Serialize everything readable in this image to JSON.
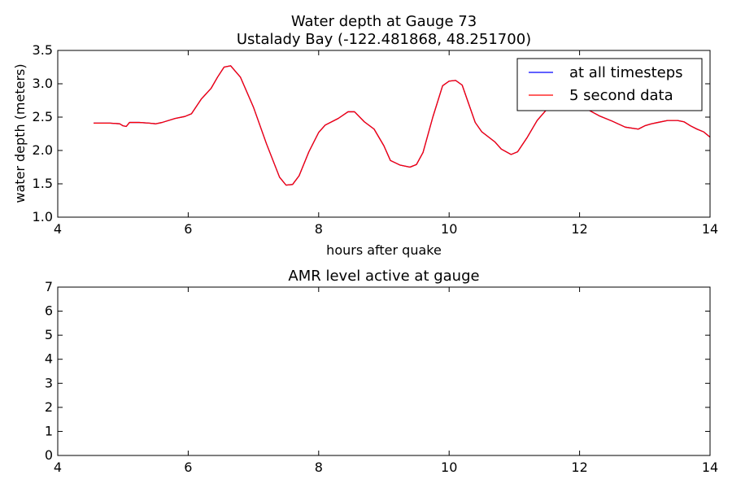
{
  "chart_data": [
    {
      "type": "line",
      "title_line1": "Water depth at Gauge 73",
      "title_line2": "Ustalady Bay  (-122.481868, 48.251700)",
      "xlabel": "hours after quake",
      "ylabel": "water depth (meters)",
      "xlim": [
        4,
        14
      ],
      "ylim": [
        1.0,
        3.5
      ],
      "xticks": [
        "4",
        "6",
        "8",
        "10",
        "12",
        "14"
      ],
      "yticks": [
        "1.0",
        "1.5",
        "2.0",
        "2.5",
        "3.0",
        "3.5"
      ],
      "grid": false,
      "legend_position": "top-right",
      "series": [
        {
          "name": "at all timesteps",
          "color": "#0000ff",
          "x": [
            4.55,
            4.8,
            4.95,
            5.0,
            5.05,
            5.1,
            5.15,
            5.25,
            5.4,
            5.5,
            5.6,
            5.8,
            5.95,
            6.05,
            6.2,
            6.35,
            6.45,
            6.55,
            6.65,
            6.8,
            7.0,
            7.2,
            7.4,
            7.5,
            7.6,
            7.7,
            7.85,
            8.0,
            8.1,
            8.3,
            8.45,
            8.55,
            8.7,
            8.85,
            9.0,
            9.1,
            9.25,
            9.4,
            9.5,
            9.6,
            9.75,
            9.9,
            10.0,
            10.1,
            10.2,
            10.3,
            10.4,
            10.5,
            10.7,
            10.8,
            10.95,
            11.05,
            11.2,
            11.35,
            11.5,
            11.65,
            11.8,
            12.0,
            12.15,
            12.3,
            12.5,
            12.7,
            12.9,
            13.0,
            13.1,
            13.2,
            13.35,
            13.5,
            13.6,
            13.7,
            13.8,
            13.9,
            14.0
          ],
          "y": [
            2.41,
            2.41,
            2.4,
            2.37,
            2.36,
            2.42,
            2.42,
            2.42,
            2.41,
            2.4,
            2.42,
            2.48,
            2.51,
            2.55,
            2.77,
            2.93,
            3.1,
            3.25,
            3.27,
            3.1,
            2.65,
            2.1,
            1.6,
            1.48,
            1.49,
            1.62,
            1.98,
            2.27,
            2.38,
            2.48,
            2.58,
            2.58,
            2.43,
            2.32,
            2.07,
            1.85,
            1.78,
            1.75,
            1.79,
            1.97,
            2.5,
            2.97,
            3.04,
            3.05,
            2.98,
            2.7,
            2.42,
            2.28,
            2.13,
            2.02,
            1.94,
            1.98,
            2.2,
            2.45,
            2.62,
            2.67,
            2.69,
            2.68,
            2.6,
            2.52,
            2.44,
            2.35,
            2.32,
            2.37,
            2.4,
            2.42,
            2.45,
            2.45,
            2.43,
            2.37,
            2.32,
            2.28,
            2.2
          ]
        },
        {
          "name": "5 second data",
          "color": "#ff0000",
          "x": [
            4.55,
            4.8,
            4.95,
            5.0,
            5.05,
            5.1,
            5.15,
            5.25,
            5.4,
            5.5,
            5.6,
            5.8,
            5.95,
            6.05,
            6.2,
            6.35,
            6.45,
            6.55,
            6.65,
            6.8,
            7.0,
            7.2,
            7.4,
            7.5,
            7.6,
            7.7,
            7.85,
            8.0,
            8.1,
            8.3,
            8.45,
            8.55,
            8.7,
            8.85,
            9.0,
            9.1,
            9.25,
            9.4,
            9.5,
            9.6,
            9.75,
            9.9,
            10.0,
            10.1,
            10.2,
            10.3,
            10.4,
            10.5,
            10.7,
            10.8,
            10.95,
            11.05,
            11.2,
            11.35,
            11.5,
            11.65,
            11.8,
            12.0,
            12.15,
            12.3,
            12.5,
            12.7,
            12.9,
            13.0,
            13.1,
            13.2,
            13.35,
            13.5,
            13.6,
            13.7,
            13.8,
            13.9,
            14.0
          ],
          "y": [
            2.41,
            2.41,
            2.4,
            2.37,
            2.36,
            2.42,
            2.42,
            2.42,
            2.41,
            2.4,
            2.42,
            2.48,
            2.51,
            2.55,
            2.77,
            2.93,
            3.1,
            3.25,
            3.27,
            3.1,
            2.65,
            2.1,
            1.6,
            1.48,
            1.49,
            1.62,
            1.98,
            2.27,
            2.38,
            2.48,
            2.58,
            2.58,
            2.43,
            2.32,
            2.07,
            1.85,
            1.78,
            1.75,
            1.79,
            1.97,
            2.5,
            2.97,
            3.04,
            3.05,
            2.98,
            2.7,
            2.42,
            2.28,
            2.13,
            2.02,
            1.94,
            1.98,
            2.2,
            2.45,
            2.62,
            2.67,
            2.69,
            2.68,
            2.6,
            2.52,
            2.44,
            2.35,
            2.32,
            2.37,
            2.4,
            2.42,
            2.45,
            2.45,
            2.43,
            2.37,
            2.32,
            2.28,
            2.2
          ]
        }
      ]
    },
    {
      "type": "line",
      "title": "AMR level active at gauge",
      "xlim": [
        4,
        14
      ],
      "ylim": [
        0,
        7
      ],
      "xticks": [
        "4",
        "6",
        "8",
        "10",
        "12",
        "14"
      ],
      "yticks": [
        "0",
        "1",
        "2",
        "3",
        "4",
        "5",
        "6",
        "7"
      ],
      "grid": false,
      "series": []
    }
  ]
}
